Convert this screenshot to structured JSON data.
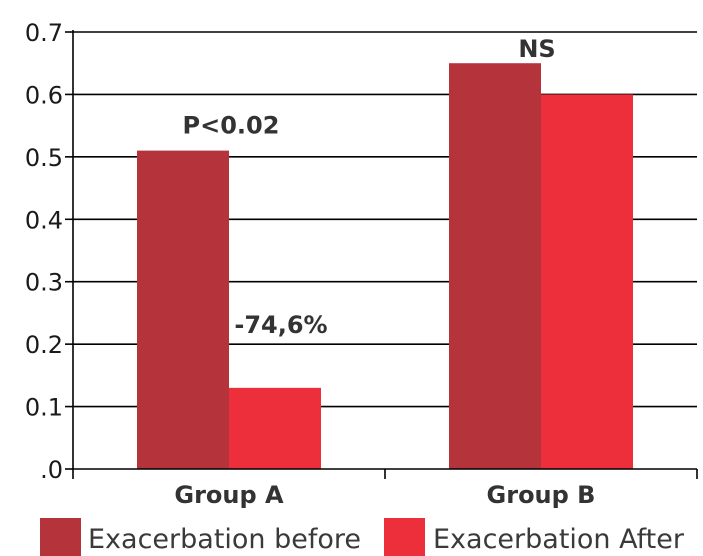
{
  "chart_data": {
    "type": "bar",
    "title": "",
    "xlabel": "",
    "ylabel": "",
    "categories": [
      "Group A",
      "Group B"
    ],
    "series": [
      {
        "name": "Exacerbation before",
        "values": [
          0.51,
          0.65
        ],
        "color": "#b5333a"
      },
      {
        "name": "Exacerbation After",
        "values": [
          0.13,
          0.6
        ],
        "color": "#ec2f3b"
      }
    ],
    "ylim": [
      0,
      0.7
    ],
    "yticks": [
      ".0",
      "0.1",
      "0.2",
      "0.3",
      "0.4",
      "0.5",
      "0.6",
      "0.7"
    ],
    "grid": true,
    "legend_position": "bottom",
    "annotations": [
      {
        "text": "P<0.02",
        "category": "Group A"
      },
      {
        "text": "-74,6%",
        "category": "Group A"
      },
      {
        "text": "NS",
        "category": "Group B"
      }
    ]
  }
}
